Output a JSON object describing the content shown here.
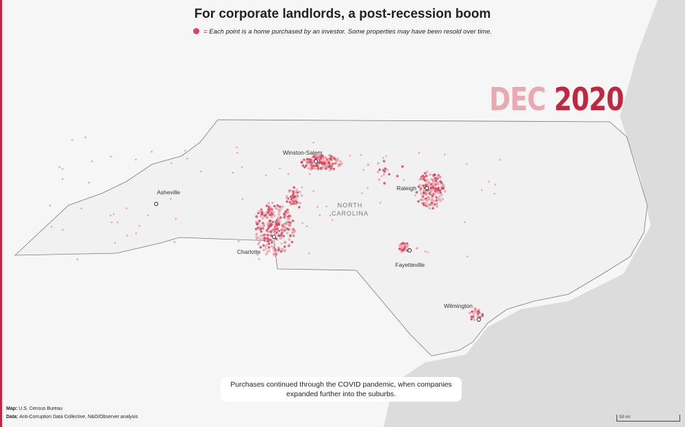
{
  "header": {
    "title": "For corporate landlords, a post-recession boom",
    "legend": "= Each point is a home purchased by an investor. Some properties may have been resold over time."
  },
  "date": {
    "month": "DEC",
    "year": "2020"
  },
  "map": {
    "state_label": [
      "NORTH",
      "CAROLINA"
    ],
    "cities": [
      "Winston-Salem",
      "Asheville",
      "Raleigh",
      "Charlotte",
      "Fayetteville",
      "Wilmington"
    ]
  },
  "caption": "Purchases continued through the COVID pandemic, when companies expanded further into the suburbs.",
  "credits": [
    {
      "label": "Map:",
      "text": "U.S. Census Bureau"
    },
    {
      "label": "Data:",
      "text": "Anti-Corruption Data Collective, N&O/Observer analysis"
    }
  ],
  "scale_bar": "50 mi"
}
